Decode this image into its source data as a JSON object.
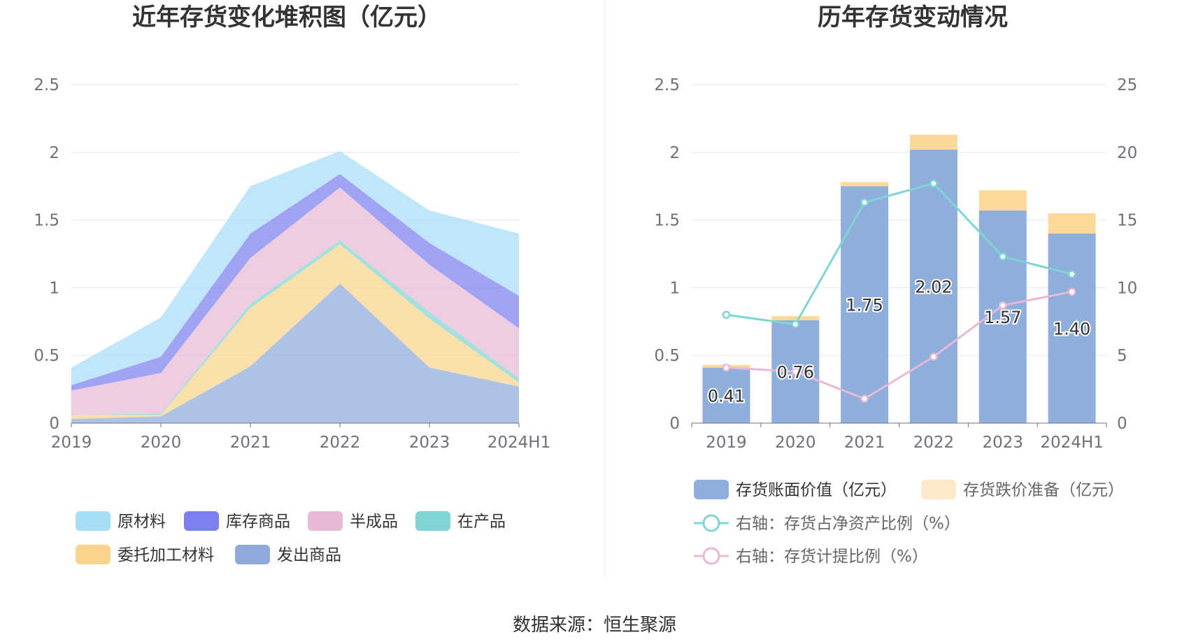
{
  "left_chart": {
    "title": "近年存货变化堆积图（亿元）",
    "chart_data": {
      "type": "area",
      "categories": [
        "2019",
        "2020",
        "2021",
        "2022",
        "2023",
        "2024H1"
      ],
      "ylim": [
        0,
        2.5
      ],
      "yticks": [
        "0",
        "0.5",
        "1",
        "1.5",
        "2",
        "2.5"
      ],
      "stacked": true,
      "series": [
        {
          "name": "发出商品",
          "color": "#8eaadb",
          "values": [
            0.03,
            0.05,
            0.42,
            1.03,
            0.41,
            0.27
          ]
        },
        {
          "name": "委托加工材料",
          "color": "#fbd48b",
          "values": [
            0.03,
            0.01,
            0.43,
            0.29,
            0.36,
            0.03
          ]
        },
        {
          "name": "在产品",
          "color": "#7fd5d3",
          "values": [
            0.0,
            0.01,
            0.03,
            0.03,
            0.05,
            0.03
          ]
        },
        {
          "name": "半成品",
          "color": "#e8b9d6",
          "values": [
            0.18,
            0.3,
            0.34,
            0.39,
            0.35,
            0.37
          ]
        },
        {
          "name": "库存商品",
          "color": "#7b7ff0",
          "values": [
            0.04,
            0.12,
            0.18,
            0.1,
            0.16,
            0.24
          ]
        },
        {
          "name": "原材料",
          "color": "#a6ddf7",
          "values": [
            0.13,
            0.29,
            0.35,
            0.17,
            0.24,
            0.46
          ]
        }
      ],
      "legend": [
        {
          "name": "原材料",
          "color": "#a6ddf7"
        },
        {
          "name": "库存商品",
          "color": "#7b7ff0"
        },
        {
          "name": "半成品",
          "color": "#e8b9d6"
        },
        {
          "name": "在产品",
          "color": "#7fd5d3"
        },
        {
          "name": "委托加工材料",
          "color": "#fbd48b"
        },
        {
          "name": "发出商品",
          "color": "#8eaadb"
        }
      ],
      "legend_position": "bottom",
      "grid": true
    }
  },
  "right_chart": {
    "title": "历年存货变动情况",
    "chart_data": {
      "type": "bar",
      "categories": [
        "2019",
        "2020",
        "2021",
        "2022",
        "2023",
        "2024H1"
      ],
      "ylim": [
        0,
        2.5
      ],
      "yticks": [
        "0",
        "0.5",
        "1",
        "1.5",
        "2",
        "2.5"
      ],
      "ylim_right": [
        0,
        25
      ],
      "yticks_right": [
        "0",
        "5",
        "10",
        "15",
        "20",
        "25"
      ],
      "stacked": true,
      "series": [
        {
          "name": "存货账面价值（亿元）",
          "color": "#8eaedb",
          "values": [
            0.41,
            0.76,
            1.75,
            2.02,
            1.57,
            1.4
          ],
          "labels": [
            "0.41",
            "0.76",
            "1.75",
            "2.02",
            "1.57",
            "1.40"
          ]
        },
        {
          "name": "存货跌价准备（亿元）",
          "color": "#fdd999",
          "values": [
            0.02,
            0.03,
            0.03,
            0.11,
            0.15,
            0.15
          ]
        }
      ],
      "line_series": [
        {
          "name": "右轴：存货占净资产比例（%）",
          "color": "#7fd5d3",
          "values": [
            8.0,
            7.3,
            16.3,
            17.7,
            12.3,
            11.0
          ]
        },
        {
          "name": "右轴：存货计提比例（%）",
          "color": "#e8b9d6",
          "values": [
            4.1,
            3.8,
            1.8,
            4.9,
            8.7,
            9.7
          ]
        }
      ],
      "legend_position": "bottom",
      "grid": true
    }
  },
  "source": "数据来源：恒生聚源"
}
